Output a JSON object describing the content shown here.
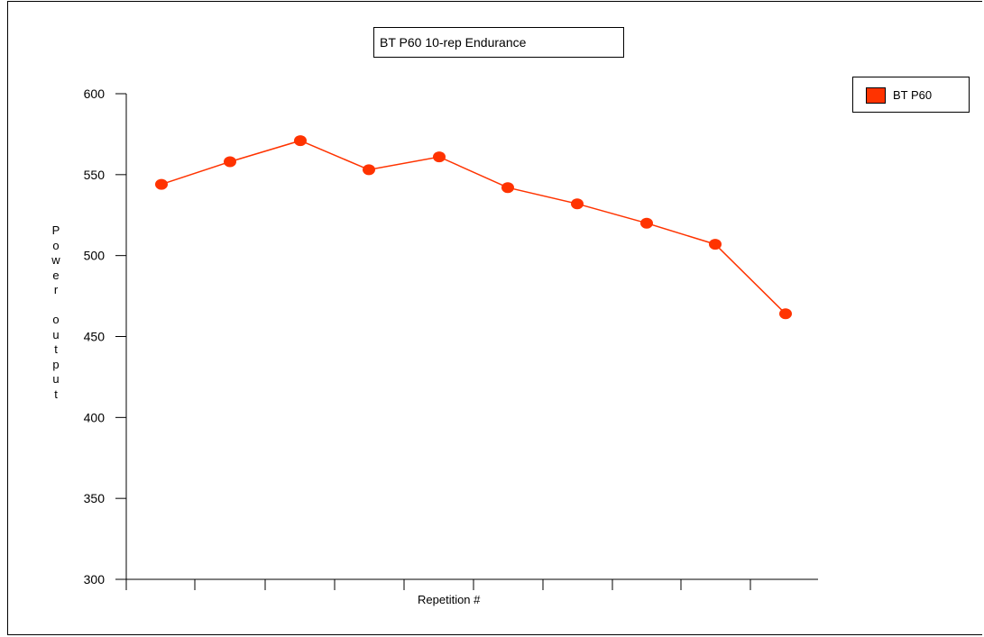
{
  "chart_data": {
    "type": "line",
    "title": "BT P60 10-rep Endurance",
    "xlabel": "Repetition #",
    "ylabel": "Power output",
    "ylim": [
      300,
      600
    ],
    "yticks": [
      300,
      350,
      400,
      450,
      500,
      550,
      600
    ],
    "x": [
      1,
      2,
      3,
      4,
      5,
      6,
      7,
      8,
      9,
      10
    ],
    "series": [
      {
        "name": "BT P60",
        "color": "#ff3300",
        "values": [
          544,
          558,
          571,
          553,
          561,
          542,
          532,
          520,
          507,
          464
        ]
      }
    ],
    "legend_position": "top-right",
    "grid": false
  }
}
